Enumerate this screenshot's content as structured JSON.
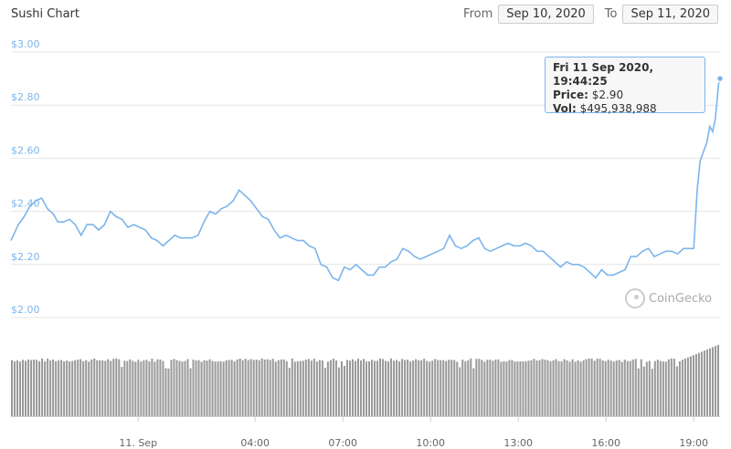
{
  "header": {
    "title": "Sushi Chart",
    "from_label": "From",
    "from_value": "Sep 10, 2020",
    "to_label": "To",
    "to_value": "Sep 11, 2020"
  },
  "tooltip": {
    "datetime": "Fri 11 Sep 2020, 19:44:25",
    "price_label": "Price:",
    "price_value": "$2.90",
    "vol_label": "Vol:",
    "vol_value": "$495,938,988"
  },
  "watermark": "CoinGecko",
  "colors": {
    "line": "#7cb5ec",
    "volume": "#999999",
    "grid": "#e6e6e6",
    "axis_text": "#7cb5ec"
  },
  "chart_data": {
    "type": "line",
    "title": "Sushi Chart",
    "xlabel": "",
    "ylabel": "",
    "y_ticks": [
      "$2.00",
      "$2.20",
      "$2.40",
      "$2.60",
      "$2.80",
      "$3.00"
    ],
    "y_tick_values": [
      2.0,
      2.2,
      2.4,
      2.6,
      2.8,
      3.0
    ],
    "ylim": [
      2.0,
      3.0
    ],
    "x_ticks": [
      "11. Sep",
      "04:00",
      "07:00",
      "10:00",
      "13:00",
      "16:00",
      "19:00"
    ],
    "x_tick_hours": [
      0,
      4,
      7,
      10,
      13,
      16,
      19
    ],
    "x_range_hours": [
      -4.35,
      19.9
    ],
    "grid": true,
    "series": [
      {
        "values": [
          [
            -4.35,
            2.29
          ],
          [
            -4.1,
            2.35
          ],
          [
            -3.9,
            2.38
          ],
          [
            -3.7,
            2.42
          ],
          [
            -3.5,
            2.44
          ],
          [
            -3.3,
            2.45
          ],
          [
            -3.1,
            2.41
          ],
          [
            -2.9,
            2.39
          ],
          [
            -2.75,
            2.36
          ],
          [
            -2.55,
            2.36
          ],
          [
            -2.35,
            2.37
          ],
          [
            -2.15,
            2.35
          ],
          [
            -1.95,
            2.31
          ],
          [
            -1.75,
            2.35
          ],
          [
            -1.55,
            2.35
          ],
          [
            -1.35,
            2.33
          ],
          [
            -1.15,
            2.35
          ],
          [
            -0.95,
            2.4
          ],
          [
            -0.75,
            2.38
          ],
          [
            -0.55,
            2.37
          ],
          [
            -0.35,
            2.34
          ],
          [
            -0.15,
            2.35
          ],
          [
            0.05,
            2.34
          ],
          [
            0.25,
            2.33
          ],
          [
            0.45,
            2.3
          ],
          [
            0.65,
            2.29
          ],
          [
            0.85,
            2.27
          ],
          [
            1.05,
            2.29
          ],
          [
            1.25,
            2.31
          ],
          [
            1.45,
            2.3
          ],
          [
            1.65,
            2.3
          ],
          [
            1.85,
            2.3
          ],
          [
            2.05,
            2.31
          ],
          [
            2.25,
            2.36
          ],
          [
            2.45,
            2.4
          ],
          [
            2.65,
            2.39
          ],
          [
            2.85,
            2.41
          ],
          [
            3.05,
            2.42
          ],
          [
            3.25,
            2.44
          ],
          [
            3.45,
            2.48
          ],
          [
            3.65,
            2.46
          ],
          [
            3.85,
            2.44
          ],
          [
            4.05,
            2.41
          ],
          [
            4.25,
            2.38
          ],
          [
            4.45,
            2.37
          ],
          [
            4.65,
            2.33
          ],
          [
            4.85,
            2.3
          ],
          [
            5.05,
            2.31
          ],
          [
            5.25,
            2.3
          ],
          [
            5.45,
            2.29
          ],
          [
            5.65,
            2.29
          ],
          [
            5.85,
            2.27
          ],
          [
            6.05,
            2.26
          ],
          [
            6.25,
            2.2
          ],
          [
            6.45,
            2.19
          ],
          [
            6.65,
            2.15
          ],
          [
            6.85,
            2.14
          ],
          [
            7.05,
            2.19
          ],
          [
            7.25,
            2.18
          ],
          [
            7.45,
            2.2
          ],
          [
            7.65,
            2.18
          ],
          [
            7.85,
            2.16
          ],
          [
            8.05,
            2.16
          ],
          [
            8.25,
            2.19
          ],
          [
            8.45,
            2.19
          ],
          [
            8.65,
            2.21
          ],
          [
            8.85,
            2.22
          ],
          [
            9.05,
            2.26
          ],
          [
            9.25,
            2.25
          ],
          [
            9.45,
            2.23
          ],
          [
            9.65,
            2.22
          ],
          [
            9.85,
            2.23
          ],
          [
            10.05,
            2.24
          ],
          [
            10.25,
            2.25
          ],
          [
            10.45,
            2.26
          ],
          [
            10.65,
            2.31
          ],
          [
            10.85,
            2.27
          ],
          [
            11.05,
            2.26
          ],
          [
            11.25,
            2.27
          ],
          [
            11.45,
            2.29
          ],
          [
            11.65,
            2.3
          ],
          [
            11.85,
            2.26
          ],
          [
            12.05,
            2.25
          ],
          [
            12.25,
            2.26
          ],
          [
            12.45,
            2.27
          ],
          [
            12.65,
            2.28
          ],
          [
            12.85,
            2.27
          ],
          [
            13.05,
            2.27
          ],
          [
            13.25,
            2.28
          ],
          [
            13.45,
            2.27
          ],
          [
            13.65,
            2.25
          ],
          [
            13.85,
            2.25
          ],
          [
            14.05,
            2.23
          ],
          [
            14.25,
            2.21
          ],
          [
            14.45,
            2.19
          ],
          [
            14.65,
            2.21
          ],
          [
            14.85,
            2.2
          ],
          [
            15.05,
            2.2
          ],
          [
            15.25,
            2.19
          ],
          [
            15.45,
            2.17
          ],
          [
            15.65,
            2.15
          ],
          [
            15.85,
            2.18
          ],
          [
            16.05,
            2.16
          ],
          [
            16.25,
            2.16
          ],
          [
            16.45,
            2.17
          ],
          [
            16.65,
            2.18
          ],
          [
            16.85,
            2.23
          ],
          [
            17.05,
            2.23
          ],
          [
            17.25,
            2.25
          ],
          [
            17.45,
            2.26
          ],
          [
            17.65,
            2.23
          ],
          [
            17.85,
            2.24
          ],
          [
            18.05,
            2.25
          ],
          [
            18.25,
            2.25
          ],
          [
            18.45,
            2.24
          ],
          [
            18.65,
            2.26
          ],
          [
            18.85,
            2.26
          ],
          [
            19.0,
            2.26
          ],
          [
            19.12,
            2.48
          ],
          [
            19.22,
            2.59
          ],
          [
            19.32,
            2.62
          ],
          [
            19.45,
            2.66
          ],
          [
            19.55,
            2.72
          ],
          [
            19.65,
            2.7
          ],
          [
            19.74,
            2.75
          ],
          [
            19.85,
            2.88
          ],
          [
            19.9,
            2.9
          ]
        ]
      }
    ],
    "volume": {
      "bar_count": 258,
      "level_base": 0.64,
      "level_final": 0.82,
      "note_hours": [
        18.6,
        19.9
      ]
    }
  }
}
